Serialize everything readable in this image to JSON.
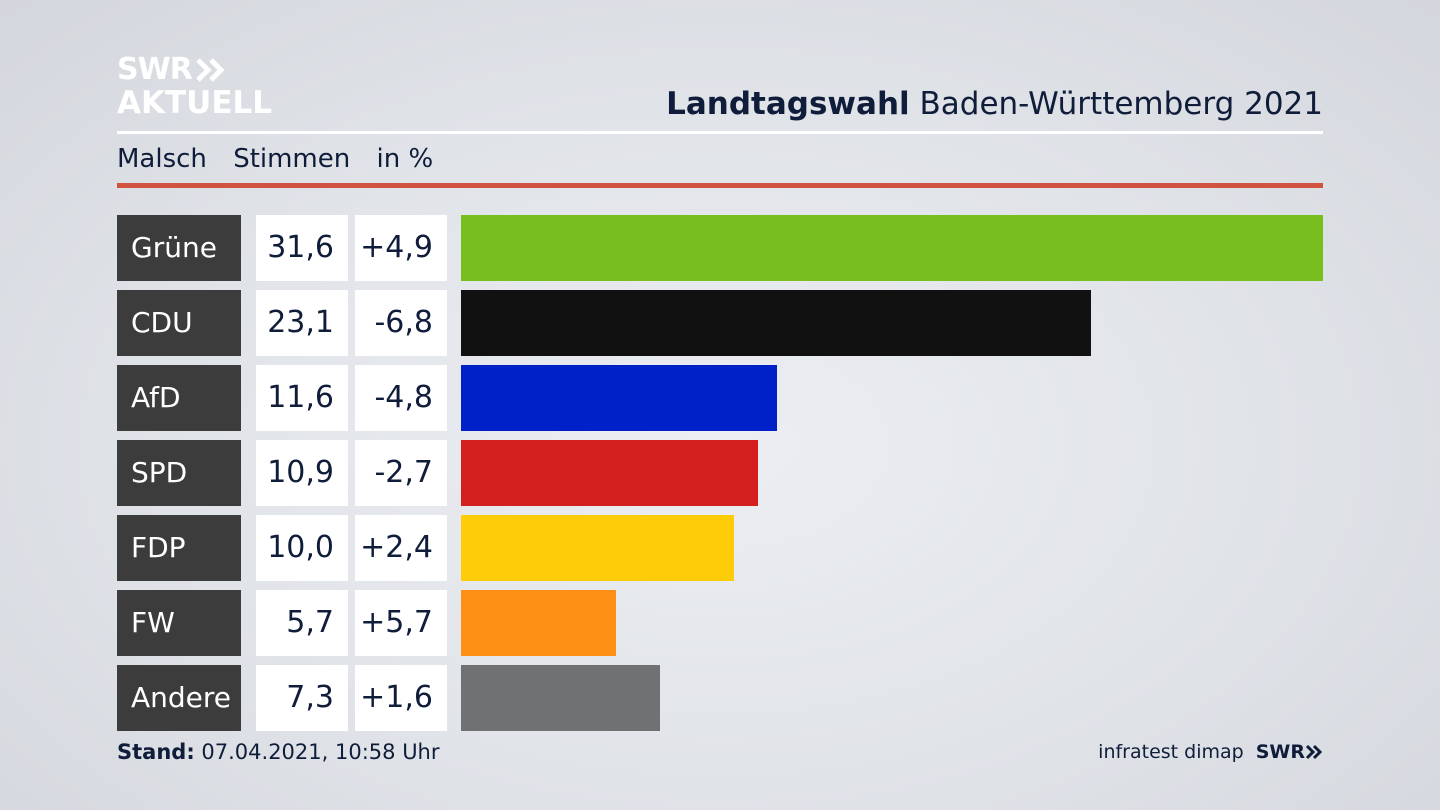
{
  "logo": {
    "line1": "SWR",
    "line2": "AKTUELL"
  },
  "header": {
    "title_bold": "Landtagswahl",
    "title_rest": "Baden-Württemberg 2021"
  },
  "subheader": {
    "place": "Malsch",
    "measure": "Stimmen",
    "unit": "in %"
  },
  "chart_data": {
    "type": "bar",
    "orientation": "horizontal",
    "categories": [
      "Grüne",
      "CDU",
      "AfD",
      "SPD",
      "FDP",
      "FW",
      "Andere"
    ],
    "values": [
      31.6,
      23.1,
      11.6,
      10.9,
      10.0,
      5.7,
      7.3
    ],
    "value_labels": [
      "31,6",
      "23,1",
      "11,6",
      "10,9",
      "10,0",
      "5,7",
      "7,3"
    ],
    "changes": [
      4.9,
      -6.8,
      -4.8,
      -2.7,
      2.4,
      5.7,
      1.6
    ],
    "change_labels": [
      "+4,9",
      "-6,8",
      "-4,8",
      "-2,7",
      "+2,4",
      "+5,7",
      "+1,6"
    ],
    "colors": [
      "#78be1e",
      "#111111",
      "#0020c8",
      "#d41f1f",
      "#ffcc0a",
      "#ff9016",
      "#707173"
    ],
    "xlim": [
      0,
      31.6
    ]
  },
  "footer": {
    "stand_label": "Stand:",
    "stand_value": "07.04.2021, 10:58 Uhr",
    "source": "infratest dimap",
    "brand": "SWR"
  }
}
